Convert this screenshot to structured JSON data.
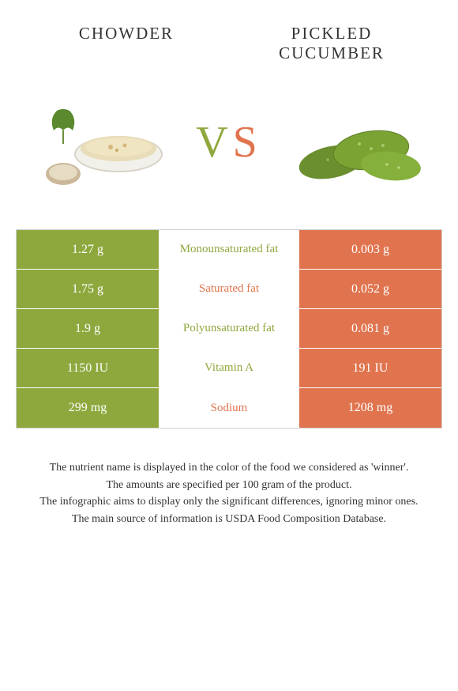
{
  "header": {
    "left_title": "CHOWDER",
    "right_title": "PICKLED CUCUMBER"
  },
  "vs": {
    "v": "V",
    "s": "S"
  },
  "colors": {
    "left": "#8fa83e",
    "right": "#e0744f",
    "border": "#d0d0d0",
    "text": "#333333",
    "background": "#ffffff"
  },
  "table": {
    "rows": [
      {
        "left": "1.27 g",
        "label": "Monounsaturated fat",
        "right": "0.003 g",
        "winner": "left"
      },
      {
        "left": "1.75 g",
        "label": "Saturated fat",
        "right": "0.052 g",
        "winner": "right"
      },
      {
        "left": "1.9 g",
        "label": "Polyunsaturated fat",
        "right": "0.081 g",
        "winner": "left"
      },
      {
        "left": "1150 IU",
        "label": "Vitamin A",
        "right": "191 IU",
        "winner": "left"
      },
      {
        "left": "299 mg",
        "label": "Sodium",
        "right": "1208 mg",
        "winner": "right"
      }
    ]
  },
  "footnotes": {
    "l1": "The nutrient name is displayed in the color of the food we considered as 'winner'.",
    "l2": "The amounts are specified per 100 gram of the product.",
    "l3": "The infographic aims to display only the significant differences, ignoring minor ones.",
    "l4": "The main source of information is USDA Food Composition Database."
  },
  "images": {
    "left_alt": "chowder-bowl",
    "right_alt": "pickled-cucumbers"
  }
}
